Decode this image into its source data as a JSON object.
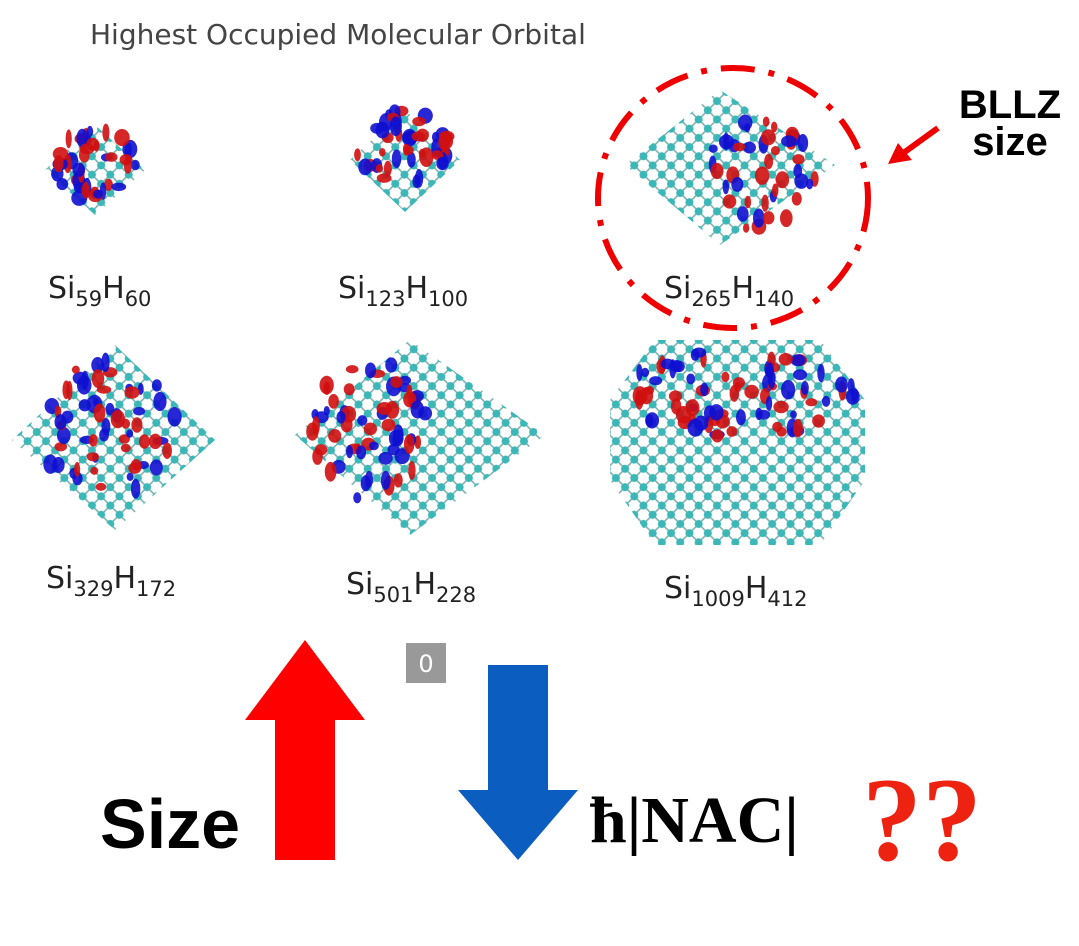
{
  "title": "Highest Occupied Molecular Orbital",
  "clusters": [
    {
      "si": "Si",
      "si_count": "59",
      "h": "H",
      "h_count": "60"
    },
    {
      "si": "Si",
      "si_count": "123",
      "h": "H",
      "h_count": "100"
    },
    {
      "si": "Si",
      "si_count": "265",
      "h": "H",
      "h_count": "140"
    },
    {
      "si": "Si",
      "si_count": "329",
      "h": "H",
      "h_count": "172"
    },
    {
      "si": "Si",
      "si_count": "501",
      "h": "H",
      "h_count": "228"
    },
    {
      "si": "Si",
      "si_count": "1009",
      "h": "H",
      "h_count": "412"
    }
  ],
  "callout": {
    "line1": "BLLZ",
    "line2": "size"
  },
  "badge": "0",
  "size_label": "Size",
  "nac_label": "ħ|NAC|",
  "question": "??"
}
